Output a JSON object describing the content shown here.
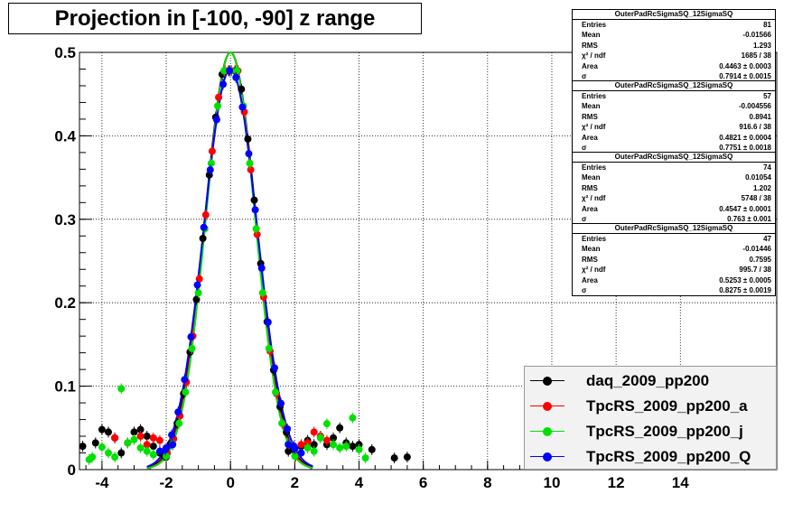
{
  "chart_data": {
    "type": "scatter",
    "title": "Projection in [-100, -90] z range",
    "xlabel": "",
    "ylabel": "",
    "xlim": [
      -4.7,
      17.0
    ],
    "ylim": [
      0,
      0.5
    ],
    "x_ticks": [
      -4,
      -2,
      0,
      2,
      4,
      6,
      8,
      10,
      12,
      14
    ],
    "y_ticks": [
      0,
      0.1,
      0.2,
      0.3,
      0.4,
      0.5
    ],
    "x_tick_labels": [
      "-4",
      "-2",
      "0",
      "2",
      "4",
      "6",
      "8",
      "10",
      "12",
      "14"
    ],
    "y_tick_labels": [
      "0",
      "0.1",
      "0.2",
      "0.3",
      "0.4",
      "0.5"
    ],
    "grid": true,
    "legend_position": "bottom-right",
    "series": [
      {
        "name": "daq_2009_pp200",
        "color": "#000000",
        "fit_sigma": 0.7914,
        "fit_amp": 0.5,
        "points": [
          [
            -4.6,
            0.028
          ],
          [
            -4.2,
            0.032
          ],
          [
            -4.0,
            0.048
          ],
          [
            -3.8,
            0.045
          ],
          [
            -3.6,
            0.038
          ],
          [
            -3.4,
            0.02
          ],
          [
            -3.2,
            0.032
          ],
          [
            -3.0,
            0.045
          ],
          [
            -2.8,
            0.048
          ],
          [
            -2.6,
            0.04
          ],
          [
            -2.4,
            0.028
          ],
          [
            -2.2,
            0.02
          ],
          [
            -2.0,
            0.015
          ],
          [
            1.8,
            0.022
          ],
          [
            2.0,
            0.025
          ],
          [
            2.2,
            0.028
          ],
          [
            2.4,
            0.035
          ],
          [
            2.6,
            0.03
          ],
          [
            2.8,
            0.04
          ],
          [
            3.0,
            0.03
          ],
          [
            3.2,
            0.038
          ],
          [
            3.4,
            0.05
          ],
          [
            3.6,
            0.032
          ],
          [
            3.8,
            0.028
          ],
          [
            4.0,
            0.03
          ],
          [
            4.4,
            0.024
          ],
          [
            5.1,
            0.014
          ],
          [
            5.5,
            0.015
          ]
        ]
      },
      {
        "name": "TpcRS_2009_pp200_a",
        "color": "#ff0000",
        "fit_sigma": 0.7751,
        "fit_amp": 0.5,
        "points": [
          [
            -3.6,
            0.038
          ],
          [
            -3.2,
            0.032
          ],
          [
            -2.8,
            0.04
          ],
          [
            -2.6,
            0.03
          ],
          [
            -2.4,
            0.038
          ],
          [
            -2.2,
            0.035
          ],
          [
            2.2,
            0.03
          ],
          [
            2.4,
            0.032
          ],
          [
            2.6,
            0.045
          ],
          [
            2.8,
            0.04
          ],
          [
            3.0,
            0.035
          ]
        ]
      },
      {
        "name": "TpcRS_2009_pp200_j",
        "color": "#00e000",
        "fit_sigma": 0.763,
        "fit_amp": 0.5,
        "points": [
          [
            -4.4,
            0.012
          ],
          [
            -4.3,
            0.015
          ],
          [
            -4.0,
            0.027
          ],
          [
            -3.8,
            0.02
          ],
          [
            -3.6,
            0.015
          ],
          [
            -3.4,
            0.097
          ],
          [
            -3.2,
            0.032
          ],
          [
            -3.0,
            0.036
          ],
          [
            -2.8,
            0.026
          ],
          [
            -2.6,
            0.022
          ],
          [
            -2.4,
            0.018
          ],
          [
            2.2,
            0.02
          ],
          [
            2.4,
            0.026
          ],
          [
            2.6,
            0.022
          ],
          [
            2.8,
            0.038
          ],
          [
            3.0,
            0.055
          ],
          [
            3.2,
            0.03
          ],
          [
            3.4,
            0.026
          ],
          [
            3.6,
            0.028
          ],
          [
            3.8,
            0.062
          ],
          [
            4.0,
            0.024
          ],
          [
            4.2,
            0.014
          ]
        ]
      },
      {
        "name": "TpcRS_2009_pp200_Q",
        "color": "#0000ff",
        "fit_sigma": 0.8275,
        "fit_amp": 0.48,
        "points": [
          [
            -2.2,
            0.022
          ],
          [
            -2.0,
            0.026
          ],
          [
            -1.8,
            0.03
          ],
          [
            1.8,
            0.03
          ],
          [
            2.0,
            0.025
          ],
          [
            2.2,
            0.02
          ]
        ]
      }
    ]
  },
  "stats_boxes": [
    {
      "title": "OuterPadRcSigmaSQ_12SigmaSQ",
      "rows": [
        [
          "Entries",
          "81"
        ],
        [
          "Mean",
          "-0.01566"
        ],
        [
          "RMS",
          "1.293"
        ],
        [
          "χ² / ndf",
          "1685 / 38"
        ],
        [
          "Area",
          "0.4463 ± 0.0003"
        ],
        [
          "σ",
          "0.7914 ± 0.0015"
        ]
      ]
    },
    {
      "title": "OuterPadRcSigmaSQ_12SigmaSQ",
      "rows": [
        [
          "Entries",
          "57"
        ],
        [
          "Mean",
          "-0.004556"
        ],
        [
          "RMS",
          "0.8941"
        ],
        [
          "χ² / ndf",
          "916.6 / 38"
        ],
        [
          "Area",
          "0.4821 ± 0.0004"
        ],
        [
          "σ",
          "0.7751 ± 0.0018"
        ]
      ]
    },
    {
      "title": "OuterPadRcSigmaSQ_12SigmaSQ",
      "rows": [
        [
          "Entries",
          "74"
        ],
        [
          "Mean",
          "0.01054"
        ],
        [
          "RMS",
          "1.202"
        ],
        [
          "χ² / ndf",
          "5748 / 38"
        ],
        [
          "Area",
          "0.4547 ± 0.0001"
        ],
        [
          "σ",
          "0.763 ± 0.001"
        ]
      ]
    },
    {
      "title": "OuterPadRcSigmaSQ_12SigmaSQ",
      "rows": [
        [
          "Entries",
          "47"
        ],
        [
          "Mean",
          "-0.01446"
        ],
        [
          "RMS",
          "0.7595"
        ],
        [
          "χ² / ndf",
          "995.7 / 38"
        ],
        [
          "Area",
          "0.5253 ± 0.0005"
        ],
        [
          "σ",
          "0.8275 ± 0.0019"
        ]
      ]
    }
  ]
}
